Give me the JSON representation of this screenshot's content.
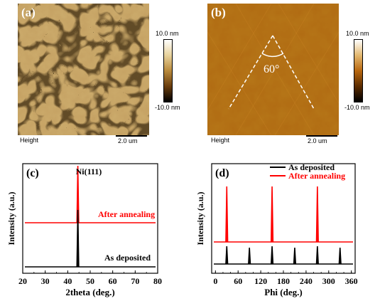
{
  "panel_a": {
    "label": "(a)",
    "footer_left": "Height",
    "scalebar": "2.0 um",
    "colorbar_max": "10.0 nm",
    "colorbar_min": "-10.0 nm"
  },
  "panel_b": {
    "label": "(b)",
    "footer_left": "Height",
    "scalebar": "2.0 um",
    "colorbar_max": "10.0 nm",
    "colorbar_min": "-10.0 nm",
    "angle_label": "60°"
  },
  "chart_data": [
    {
      "type": "line",
      "panel": "(c)",
      "xlabel": "2theta (deg.)",
      "ylabel": "Intensity (a.u.)",
      "xlim": [
        20,
        80
      ],
      "xticks": [
        "20",
        "30",
        "40",
        "50",
        "60",
        "70",
        "80"
      ],
      "annotation": "Ni(111)",
      "series": [
        {
          "name": "After annealing",
          "color": "#ff0000",
          "peaks": [
            {
              "x": 44.5,
              "height": 1.0
            }
          ]
        },
        {
          "name": "As deposited",
          "color": "#000000",
          "peaks": [
            {
              "x": 44.5,
              "height": 1.0
            }
          ]
        }
      ]
    },
    {
      "type": "line",
      "panel": "(d)",
      "xlabel": "Phi (deg.)",
      "ylabel": "Intensity (a.u.)",
      "xlim": [
        -10,
        370
      ],
      "xticks": [
        "0",
        "60",
        "120",
        "180",
        "240",
        "300",
        "360"
      ],
      "legend": [
        "As deposited",
        "After annealing"
      ],
      "series": [
        {
          "name": "After annealing",
          "color": "#ff0000",
          "peaks": [
            {
              "x": 30,
              "height": 1.0
            },
            {
              "x": 150,
              "height": 1.0
            },
            {
              "x": 270,
              "height": 1.0
            }
          ]
        },
        {
          "name": "As deposited",
          "color": "#000000",
          "peaks": [
            {
              "x": 30,
              "height": 1.0
            },
            {
              "x": 90,
              "height": 0.92
            },
            {
              "x": 150,
              "height": 1.0
            },
            {
              "x": 210,
              "height": 0.92
            },
            {
              "x": 270,
              "height": 1.0
            },
            {
              "x": 330,
              "height": 0.92
            }
          ]
        }
      ]
    }
  ]
}
